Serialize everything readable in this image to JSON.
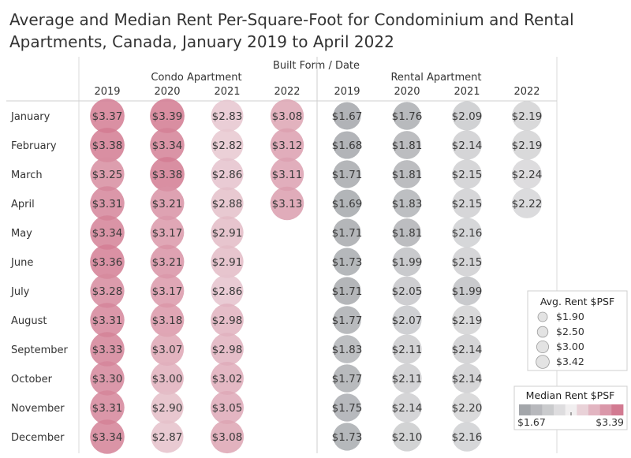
{
  "chart_data": {
    "type": "heatmap",
    "title_lines": [
      "Average and Median Rent Per-Square-Foot for Condominium and Rental",
      "Apartments, Canada, January 2019 to April 2022"
    ],
    "column_header": "Built Form  /  Date",
    "groups": [
      {
        "name": "Condo Apartment",
        "years": [
          "2019",
          "2020",
          "2021",
          "2022"
        ]
      },
      {
        "name": "Rental Apartment",
        "years": [
          "2019",
          "2020",
          "2021",
          "2022"
        ]
      }
    ],
    "months": [
      "January",
      "February",
      "March",
      "April",
      "May",
      "June",
      "July",
      "August",
      "September",
      "October",
      "November",
      "December"
    ],
    "series": [
      {
        "group": "Condo Apartment",
        "year": "2019",
        "values": [
          3.37,
          3.38,
          3.25,
          3.31,
          3.34,
          3.36,
          3.28,
          3.31,
          3.33,
          3.3,
          3.31,
          3.34
        ]
      },
      {
        "group": "Condo Apartment",
        "year": "2020",
        "values": [
          3.39,
          3.34,
          3.38,
          3.21,
          3.17,
          3.21,
          3.17,
          3.18,
          3.07,
          3.0,
          2.9,
          2.87
        ]
      },
      {
        "group": "Condo Apartment",
        "year": "2021",
        "values": [
          2.83,
          2.82,
          2.86,
          2.88,
          2.91,
          2.91,
          2.86,
          2.98,
          2.98,
          3.02,
          3.05,
          3.08
        ]
      },
      {
        "group": "Condo Apartment",
        "year": "2022",
        "values": [
          3.08,
          3.12,
          3.11,
          3.13,
          null,
          null,
          null,
          null,
          null,
          null,
          null,
          null
        ]
      },
      {
        "group": "Rental Apartment",
        "year": "2019",
        "values": [
          1.67,
          1.68,
          1.71,
          1.69,
          1.71,
          1.73,
          1.71,
          1.77,
          1.83,
          1.77,
          1.75,
          1.73
        ]
      },
      {
        "group": "Rental Apartment",
        "year": "2020",
        "values": [
          1.76,
          1.81,
          1.81,
          1.83,
          1.81,
          1.99,
          2.05,
          2.07,
          2.11,
          2.11,
          2.14,
          2.1
        ]
      },
      {
        "group": "Rental Apartment",
        "year": "2021",
        "values": [
          2.09,
          2.14,
          2.15,
          2.15,
          2.16,
          2.15,
          1.99,
          2.19,
          2.14,
          2.14,
          2.2,
          2.16
        ]
      },
      {
        "group": "Rental Apartment",
        "year": "2022",
        "values": [
          2.19,
          2.19,
          2.24,
          2.22,
          null,
          null,
          null,
          null,
          null,
          null,
          null,
          null
        ]
      }
    ],
    "size_legend": {
      "title": "Avg. Rent $PSF",
      "entries": [
        "$1.90",
        "$2.50",
        "$3.00",
        "$3.42"
      ]
    },
    "color_legend": {
      "title": "Median Rent $PSF",
      "min_label": "$1.67",
      "max_label": "$3.39",
      "min": 1.67,
      "max": 3.39
    },
    "value_prefix": "$",
    "colors": {
      "low": "#a3a6aa",
      "mid": "#f1eff0",
      "high": "#d27a91"
    }
  }
}
